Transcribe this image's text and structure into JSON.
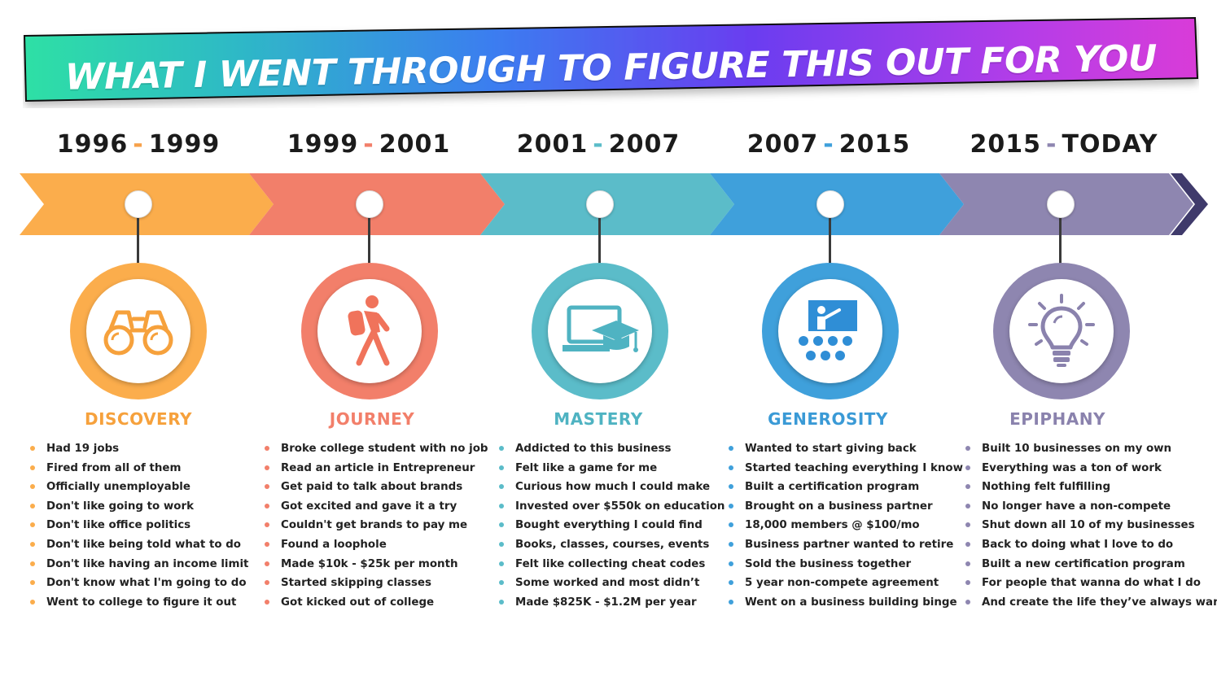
{
  "title": "WHAT I WENT THROUGH TO FIGURE THIS OUT FOR YOU",
  "colors": {
    "banner_gradient": [
      "#2fe0a5",
      "#2eb9c6",
      "#3b7df0",
      "#6a3df0",
      "#b43ee8",
      "#d93bd8"
    ],
    "text_dark": "#1b1b1b"
  },
  "stages": [
    {
      "year_start": "1996",
      "year_end": "1999",
      "label": "DISCOVERY",
      "color": "#fbad4c",
      "color_dark": "#f26b2d",
      "icon": "binoculars-icon",
      "items": [
        "Had 19 jobs",
        "Fired from all of them",
        "Officially unemployable",
        "Don't like going to work",
        "Don't like office politics",
        "Don't like being told what to do",
        "Don't like having an income limit",
        "Don't know what I'm going to do",
        "Went to college to figure it out"
      ]
    },
    {
      "year_start": "1999",
      "year_end": "2001",
      "label": "JOURNEY",
      "color": "#f27f6a",
      "color_dark": "#5d5a55",
      "icon": "hiker-icon",
      "items": [
        "Broke college student with no job",
        "Read an article in Entrepreneur",
        "Get paid to talk about brands",
        "Got excited and gave it a try",
        "Couldn't get brands to pay me",
        "Found a loophole",
        "Made $10k - $25k per month",
        "Started skipping classes",
        "Got kicked out of college"
      ]
    },
    {
      "year_start": "2001",
      "year_end": "2007",
      "label": "MASTERY",
      "color": "#5bbcc9",
      "color_dark": "#2f8fc4",
      "icon": "graduation-laptop-icon",
      "items": [
        "Addicted to this business",
        "Felt like a game for me",
        "Curious how much I could make",
        "Invested over $550k on education",
        "Bought everything I could find",
        "Books, classes, courses, events",
        "Felt like collecting cheat codes",
        "Some worked and most didn’t",
        "Made $825K - $1.2M per year"
      ]
    },
    {
      "year_start": "2007",
      "year_end": "2015",
      "label": "GENEROSITY",
      "color": "#3fa0db",
      "color_dark": "#2a5c95",
      "icon": "teacher-audience-icon",
      "items": [
        "Wanted to start giving back",
        "Started teaching everything I know",
        "Built a certification program",
        "Brought on a business partner",
        "18,000 members @ $100/mo",
        "Business partner wanted to retire",
        "Sold the business together",
        "5 year non-compete agreement",
        "Went on a business building binge"
      ]
    },
    {
      "year_start": "2015",
      "year_end": "TODAY",
      "label": "EPIPHANY",
      "color": "#8e86b0",
      "color_dark": "#3f3a6b",
      "icon": "lightbulb-icon",
      "items": [
        "Built 10 businesses on my own",
        "Everything was a ton of work",
        "Nothing felt fulfilling",
        "No longer have a non-compete",
        "Shut down all 10 of my businesses",
        "Back to doing what I love to do",
        "Built a new certification program",
        "For people that wanna do what I do",
        "And create the life they’ve always wanted"
      ]
    }
  ]
}
